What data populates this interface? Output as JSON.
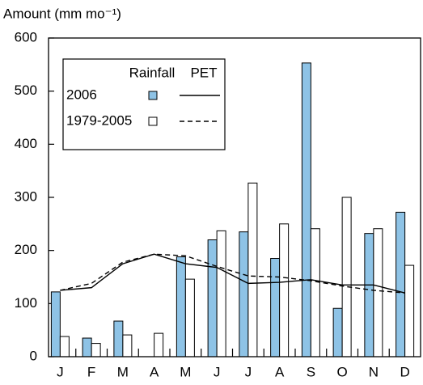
{
  "chart_data": {
    "type": "bar",
    "y_label": "Amount (mm mo⁻¹)",
    "categories": [
      "J",
      "F",
      "M",
      "A",
      "M",
      "J",
      "J",
      "A",
      "S",
      "O",
      "N",
      "D"
    ],
    "ylim": [
      0,
      600
    ],
    "yticks": [
      0,
      100,
      200,
      300,
      400,
      500,
      600
    ],
    "rainfall": {
      "name": "Rainfall",
      "series": [
        {
          "name": "2006",
          "color": "#8ec3e6",
          "values": [
            122,
            35,
            67,
            0,
            188,
            220,
            235,
            185,
            553,
            91,
            232,
            272
          ]
        },
        {
          "name": "1979-2005",
          "color": "#ffffff",
          "values": [
            38,
            25,
            41,
            44,
            146,
            237,
            327,
            250,
            241,
            300,
            241,
            172
          ]
        }
      ]
    },
    "pet": {
      "name": "PET",
      "series": [
        {
          "name": "2006",
          "color": "#000000",
          "dash": "solid",
          "values": [
            125,
            130,
            175,
            193,
            175,
            168,
            138,
            140,
            145,
            135,
            135,
            120
          ]
        },
        {
          "name": "1979-2005",
          "color": "#000000",
          "dash": "dashed",
          "values": [
            125,
            138,
            178,
            193,
            190,
            170,
            152,
            150,
            143,
            133,
            125,
            120
          ]
        }
      ]
    }
  }
}
